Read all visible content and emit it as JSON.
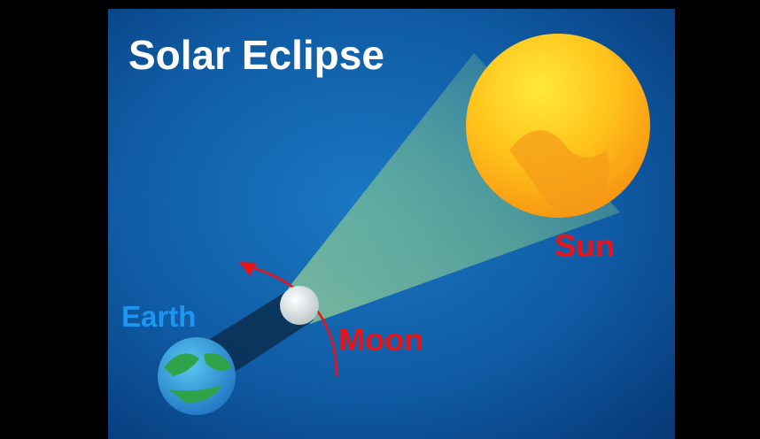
{
  "title": "Solar Eclipse",
  "nodes": [
    {
      "label": "Sun"
    },
    {
      "label": "Moon"
    },
    {
      "label": "Earth"
    }
  ]
}
